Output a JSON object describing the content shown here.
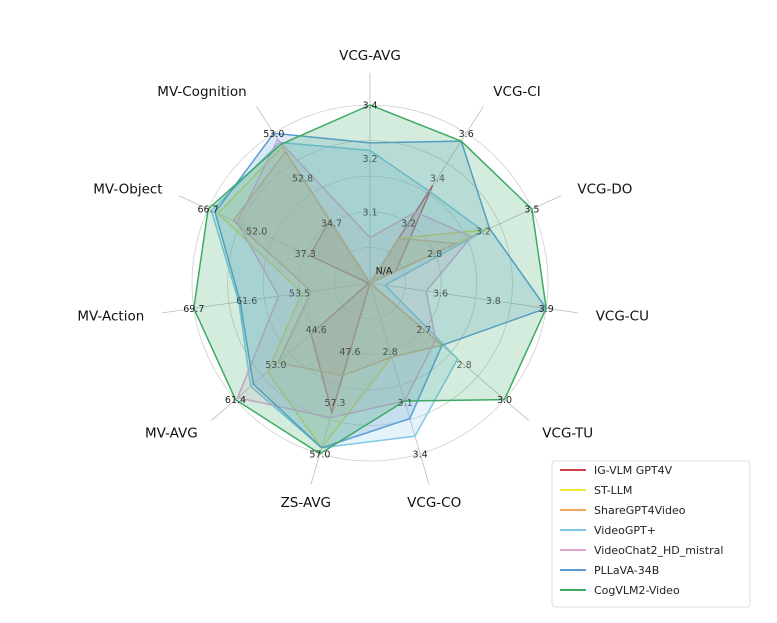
{
  "chart_data": {
    "type": "radar",
    "title": "",
    "axes": [
      "VCG-AVG",
      "VCG-CI",
      "VCG-DO",
      "VCG-CU",
      "VCG-TU",
      "VCG-CO",
      "ZS-AVG",
      "MV-AVG",
      "MV-Action",
      "MV-Object",
      "MV-Cognition"
    ],
    "center_label": "N/A",
    "series": [
      {
        "name": "IG-VLM GPT4V",
        "color": "#d1424a",
        "values": [
          2.6,
          3.4,
          2.6,
          2.8,
          2.8,
          1.7,
          53.6,
          47.0,
          45.6,
          39.0,
          38.8
        ]
      },
      {
        "name": "ST-LLM",
        "color": "#f0e33a",
        "values": [
          2.9,
          3.2,
          3.2,
          3.0,
          2.8,
          2.85,
          56.5,
          55.3,
          54.8,
          64.0,
          50.8
        ]
      },
      {
        "name": "ShareGPT4Video",
        "color": "#f2a85e",
        "values": [
          2.8,
          3.2,
          3.0,
          3.2,
          2.8,
          2.85,
          50.5,
          53.3,
          53.5,
          59.8,
          50.0
        ]
      },
      {
        "name": "VideoGPT+",
        "color": "#7ec8e3",
        "values": [
          3.28,
          3.38,
          3.18,
          3.47,
          2.85,
          3.3,
          56.5,
          58.5,
          63.5,
          65.8,
          51.5
        ]
      },
      {
        "name": "VideoChat2_HD_mistral",
        "color": "#e0a8d3",
        "values": [
          3.05,
          3.3,
          3.1,
          3.58,
          2.78,
          3.1,
          54.0,
          61.0,
          58.0,
          58.8,
          52.0
        ]
      },
      {
        "name": "PLLaVA-34B",
        "color": "#5b9bd8",
        "values": [
          3.3,
          3.57,
          3.22,
          3.9,
          2.8,
          3.2,
          56.5,
          58.0,
          63.3,
          64.8,
          53.0
        ]
      },
      {
        "name": "CogVLM2-Video",
        "color": "#3daa63",
        "values": [
          3.4,
          3.57,
          3.5,
          3.9,
          3.0,
          3.1,
          57.0,
          61.4,
          69.7,
          66.7,
          51.2
        ]
      }
    ],
    "axis_ticks": [
      [
        "3.1",
        "3.2",
        "3.4"
      ],
      [
        "3.2",
        "3.4",
        "3.6"
      ],
      [
        "2.8",
        "3.2",
        "3.5"
      ],
      [
        "3.6",
        "3.8",
        "3.9"
      ],
      [
        "2.7",
        "2.8",
        "3.0"
      ],
      [
        "2.8",
        "3.1",
        "3.4"
      ],
      [
        "47.6",
        "57.3",
        "57.0"
      ],
      [
        "44.6",
        "53.0",
        "61.4"
      ],
      [
        "53.5",
        "61.6",
        "69.7"
      ],
      [
        "37.3",
        "52.0",
        "66.7"
      ],
      [
        "34.7",
        "52.8",
        "53.0"
      ]
    ],
    "ranges": [
      [
        2.93,
        3.4
      ],
      [
        3.03,
        3.6
      ],
      [
        2.43,
        3.5
      ],
      [
        3.43,
        3.9
      ],
      [
        2.57,
        3.0
      ],
      [
        2.43,
        3.4
      ],
      [
        42.8,
        57.0
      ],
      [
        35.8,
        61.4
      ],
      [
        45.4,
        69.7
      ],
      [
        22.6,
        66.7
      ],
      [
        28.6,
        53.0
      ]
    ],
    "grid": true,
    "legend_position": "bottom-right"
  }
}
